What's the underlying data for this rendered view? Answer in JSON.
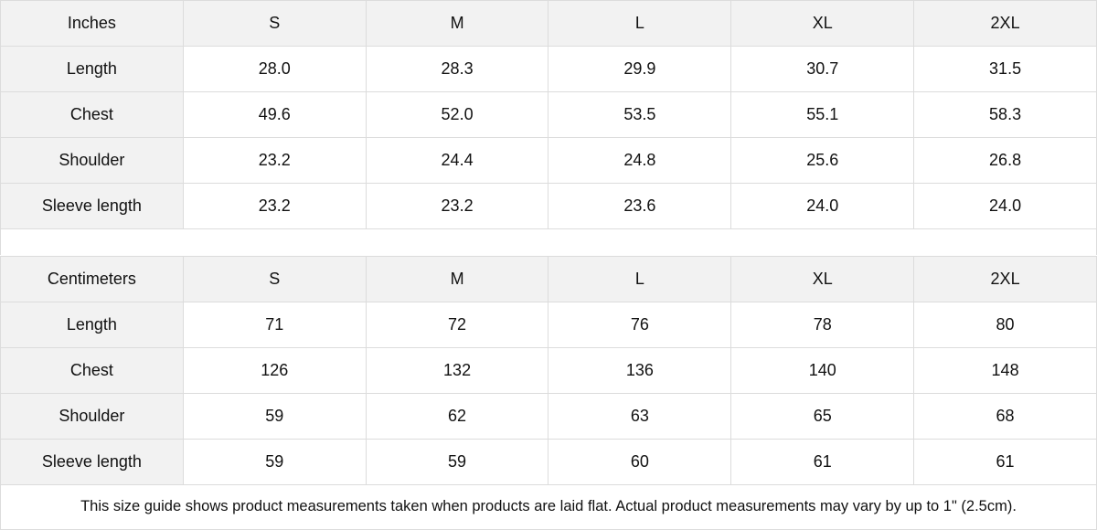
{
  "tables": [
    {
      "unit": "Inches",
      "sizes": [
        "S",
        "M",
        "L",
        "XL",
        "2XL"
      ],
      "rows": [
        {
          "label": "Length",
          "values": [
            "28.0",
            "28.3",
            "29.9",
            "30.7",
            "31.5"
          ]
        },
        {
          "label": "Chest",
          "values": [
            "49.6",
            "52.0",
            "53.5",
            "55.1",
            "58.3"
          ]
        },
        {
          "label": "Shoulder",
          "values": [
            "23.2",
            "24.4",
            "24.8",
            "25.6",
            "26.8"
          ]
        },
        {
          "label": "Sleeve length",
          "values": [
            "23.2",
            "23.2",
            "23.6",
            "24.0",
            "24.0"
          ]
        }
      ]
    },
    {
      "unit": "Centimeters",
      "sizes": [
        "S",
        "M",
        "L",
        "XL",
        "2XL"
      ],
      "rows": [
        {
          "label": "Length",
          "values": [
            "71",
            "72",
            "76",
            "78",
            "80"
          ]
        },
        {
          "label": "Chest",
          "values": [
            "126",
            "132",
            "136",
            "140",
            "148"
          ]
        },
        {
          "label": "Shoulder",
          "values": [
            "59",
            "62",
            "63",
            "65",
            "68"
          ]
        },
        {
          "label": "Sleeve length",
          "values": [
            "59",
            "59",
            "60",
            "61",
            "61"
          ]
        }
      ]
    }
  ],
  "note": "This size guide shows product measurements taken when products are laid flat.  Actual product measurements may vary by up to 1\" (2.5cm).",
  "colors": {
    "header_bg": "#f2f2f2",
    "border": "#dcdcdc"
  }
}
